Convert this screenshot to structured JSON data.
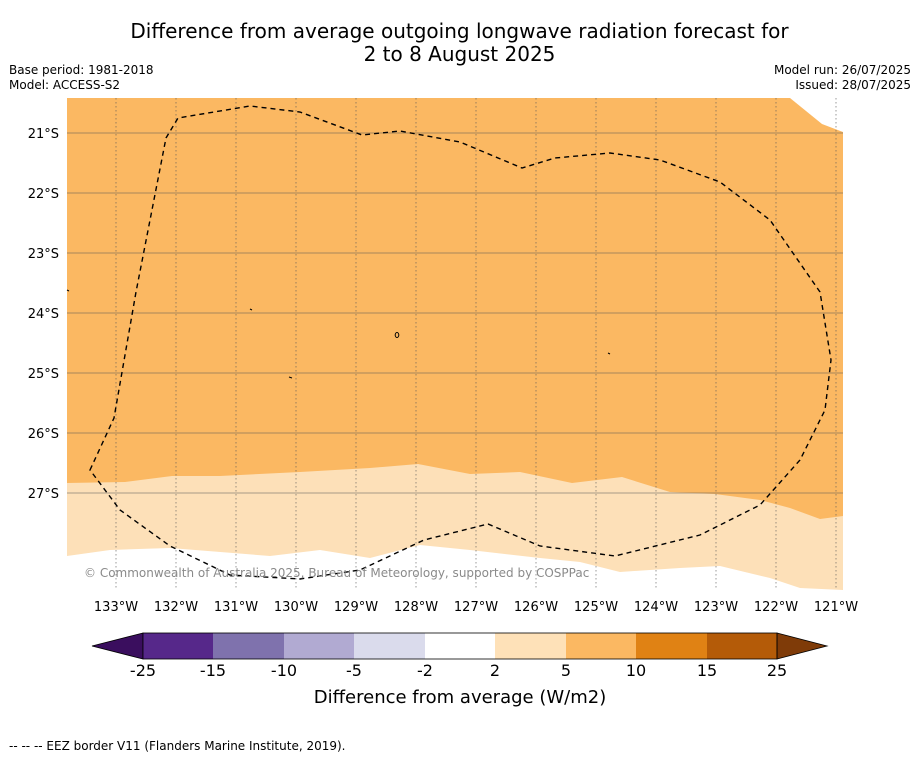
{
  "title": {
    "line1": "Difference from average outgoing longwave radiation forecast for",
    "line2": "2 to 8 August 2025"
  },
  "meta": {
    "base_period": "Base period: 1981-2018",
    "model": "Model: ACCESS-S2",
    "model_run": "Model run: 26/07/2025",
    "issued": "Issued: 28/07/2025"
  },
  "map": {
    "latitude_labels": [
      "21°S",
      "22°S",
      "23°S",
      "24°S",
      "25°S",
      "26°S",
      "27°S"
    ],
    "longitude_labels": [
      "133°W",
      "132°W",
      "131°W",
      "130°W",
      "129°W",
      "128°W",
      "127°W",
      "126°W",
      "125°W",
      "124°W",
      "123°W",
      "122°W",
      "121°W"
    ],
    "copyright": "© Commonwealth of Australia 2025, Bureau of Meteorology, supported by COSPPac",
    "colors": {
      "band_5_10": "#fbb862",
      "band_2_5": "#fde0b8",
      "band_neg2_2": "#ffffff",
      "grid": "#555555"
    }
  },
  "colorbar": {
    "ticks": [
      "-25",
      "-15",
      "-10",
      "-5",
      "-2",
      "2",
      "5",
      "10",
      "15",
      "25"
    ],
    "label": "Difference from average (W/m2)",
    "colors": [
      "#3a0e5e",
      "#56288a",
      "#7f72ad",
      "#b1aad2",
      "#dadbec",
      "#ffffff",
      "#fee1b8",
      "#fbb862",
      "#e08214",
      "#b45b08",
      "#7f3b08"
    ]
  },
  "footer": {
    "legend": "-- -- -- EEZ border V11 (Flanders Marine Institute, 2019)."
  }
}
